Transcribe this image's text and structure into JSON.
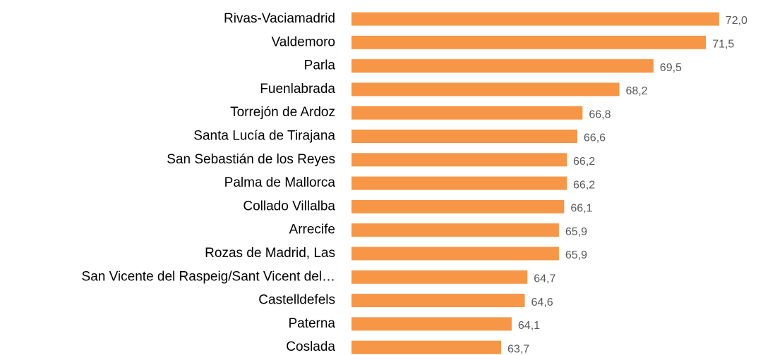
{
  "chart_data": {
    "type": "barh",
    "categories": [
      "Rivas-Vaciamadrid",
      "Valdemoro",
      "Parla",
      "Fuenlabrada",
      "Torrejón de Ardoz",
      "Santa Lucía de Tirajana",
      "San Sebastián de los Reyes",
      "Palma de Mallorca",
      "Collado Villalba",
      "Arrecife",
      "Rozas de Madrid, Las",
      "San Vicente del Raspeig/Sant Vicent del…",
      "Castelldefels",
      "Paterna",
      "Coslada"
    ],
    "values": [
      72.0,
      71.5,
      69.5,
      68.2,
      66.8,
      66.6,
      66.2,
      66.2,
      66.1,
      65.9,
      65.9,
      64.7,
      64.6,
      64.1,
      63.7
    ],
    "value_labels": [
      "72,0",
      "71,5",
      "69,5",
      "68,2",
      "66,8",
      "66,6",
      "66,2",
      "66,2",
      "66,1",
      "65,9",
      "65,9",
      "64,7",
      "64,6",
      "64,1",
      "63,7"
    ],
    "color": "#f79646",
    "xlim": [
      58,
      73
    ]
  }
}
